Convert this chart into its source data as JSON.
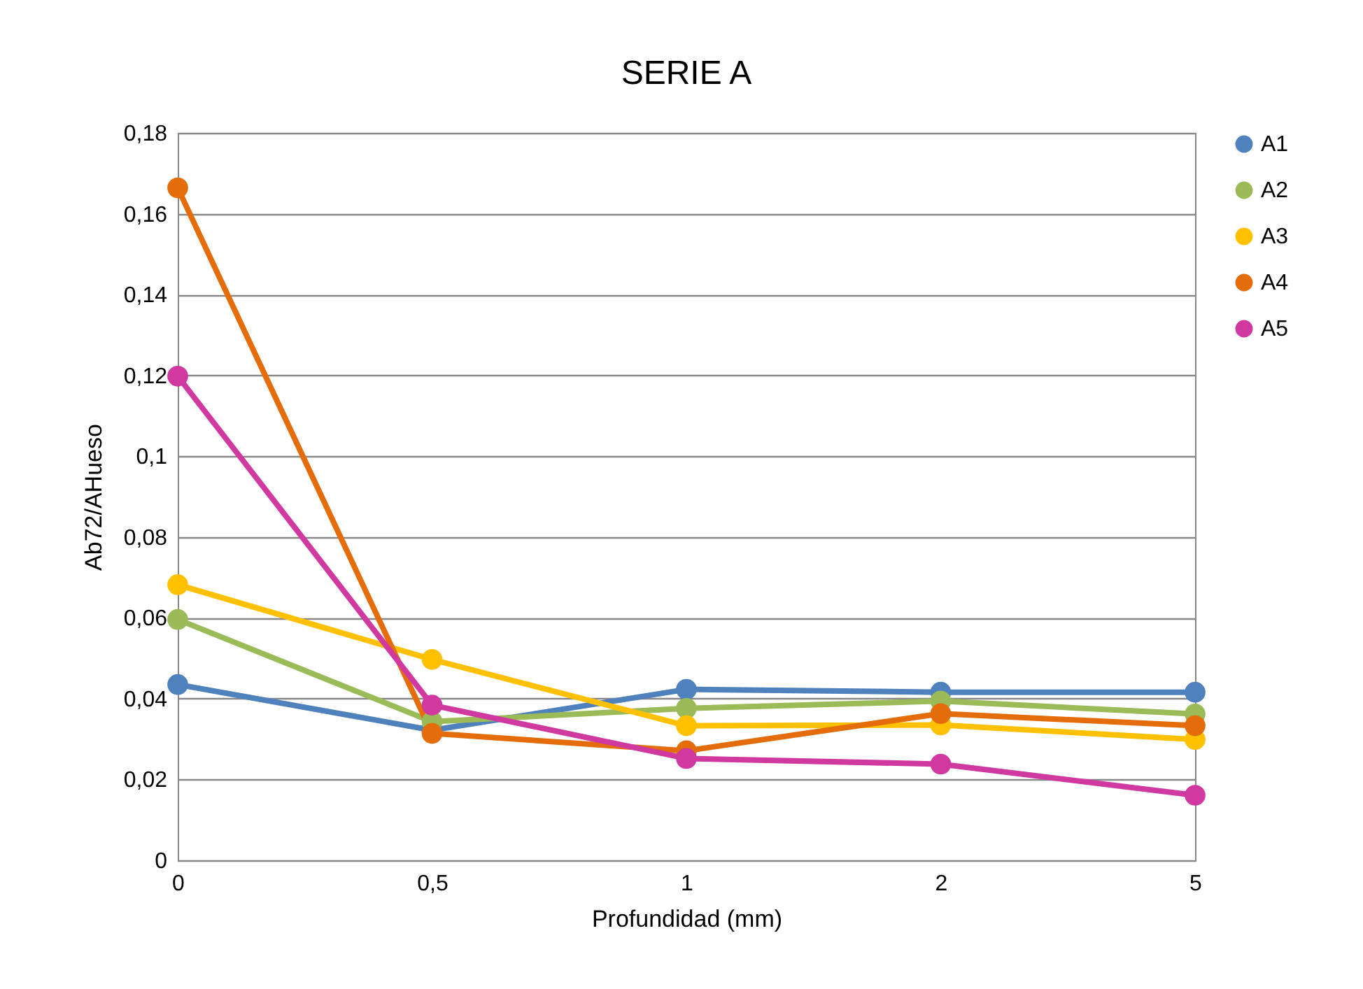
{
  "chart_data": {
    "type": "line",
    "title": "SERIE A",
    "xlabel": "Profundidad (mm)",
    "ylabel": "Ab72/AHueso",
    "categories": [
      "0",
      "0,5",
      "1",
      "2",
      "5"
    ],
    "series": [
      {
        "name": "A1",
        "color": "#4f81bd",
        "values": [
          0.0435,
          0.0322,
          0.0423,
          0.0416,
          0.0416
        ]
      },
      {
        "name": "A2",
        "color": "#9bbb59",
        "values": [
          0.0596,
          0.0343,
          0.0376,
          0.0394,
          0.0362
        ]
      },
      {
        "name": "A3",
        "color": "#ffc000",
        "values": [
          0.0682,
          0.0497,
          0.0333,
          0.0335,
          0.0299
        ]
      },
      {
        "name": "A4",
        "color": "#e46c0a",
        "values": [
          0.1664,
          0.0314,
          0.0271,
          0.0363,
          0.0333
        ]
      },
      {
        "name": "A5",
        "color": "#d0399f",
        "values": [
          0.1198,
          0.0384,
          0.0252,
          0.0238,
          0.0161
        ]
      }
    ],
    "ylim": [
      0,
      0.18
    ],
    "yticks": [
      {
        "value": 0,
        "label": "0"
      },
      {
        "value": 0.02,
        "label": "0,02"
      },
      {
        "value": 0.04,
        "label": "0,04"
      },
      {
        "value": 0.06,
        "label": "0,06"
      },
      {
        "value": 0.08,
        "label": "0,08"
      },
      {
        "value": 0.1,
        "label": "0,1"
      },
      {
        "value": 0.12,
        "label": "0,12"
      },
      {
        "value": 0.14,
        "label": "0,14"
      },
      {
        "value": 0.16,
        "label": "0,16"
      },
      {
        "value": 0.18,
        "label": "0,18"
      }
    ],
    "grid": "y",
    "legend": "right",
    "marker": "circle",
    "line_style": "solid"
  }
}
